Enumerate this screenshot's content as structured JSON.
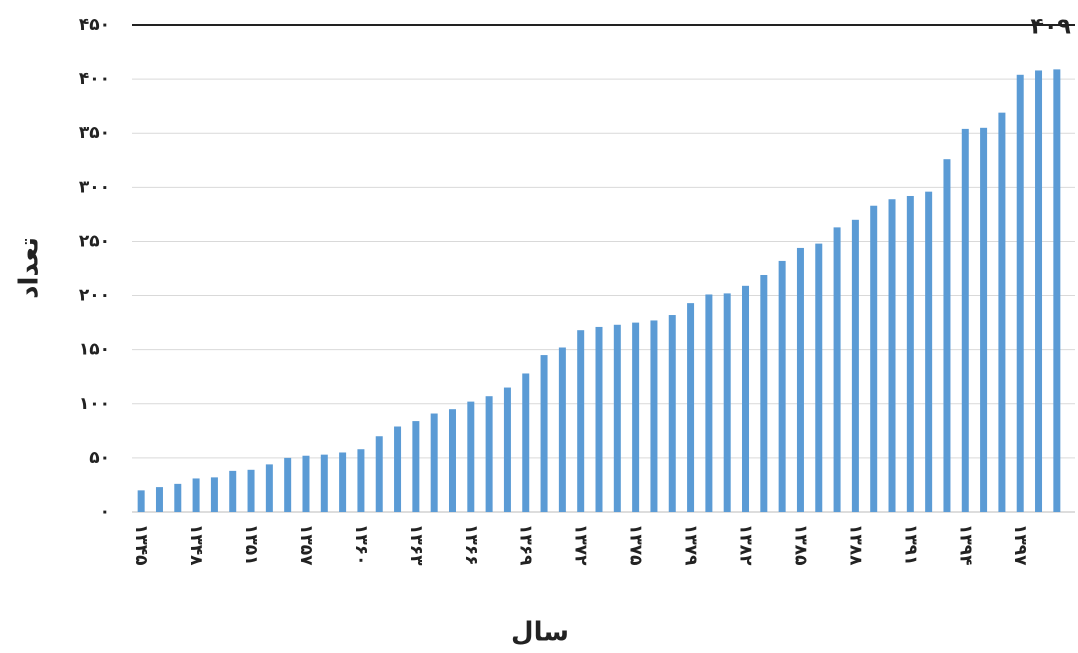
{
  "chart_data": {
    "type": "bar",
    "x_label": "سال",
    "y_label": "تعداد",
    "categories": [
      "۱۳۴۵",
      null,
      null,
      "۱۳۴۸",
      null,
      null,
      "۱۳۵۱",
      null,
      null,
      "۱۳۵۷",
      null,
      null,
      "۱۳۶۰",
      null,
      null,
      "۱۳۶۳",
      null,
      null,
      "۱۳۶۶",
      null,
      null,
      "۱۳۶۹",
      null,
      null,
      "۱۳۷۲",
      null,
      null,
      "۱۳۷۵",
      null,
      null,
      "۱۳۷۹",
      null,
      null,
      "۱۳۸۲",
      null,
      null,
      "۱۳۸۵",
      null,
      null,
      "۱۳۸۸",
      null,
      null,
      "۱۳۹۱",
      null,
      null,
      "۱۳۹۴",
      null,
      null,
      "۱۳۹۷",
      null,
      null
    ],
    "values": [
      20,
      23,
      26,
      31,
      32,
      38,
      39,
      44,
      50,
      52,
      53,
      55,
      58,
      70,
      79,
      84,
      91,
      95,
      102,
      107,
      115,
      128,
      145,
      152,
      168,
      171,
      173,
      175,
      177,
      182,
      193,
      201,
      202,
      209,
      219,
      232,
      244,
      248,
      263,
      270,
      283,
      289,
      292,
      296,
      326,
      354,
      355,
      369,
      404,
      408,
      409
    ],
    "value_labels": [
      null,
      null,
      null,
      null,
      null,
      null,
      null,
      null,
      null,
      null,
      null,
      null,
      null,
      null,
      null,
      null,
      null,
      null,
      null,
      null,
      null,
      null,
      null,
      null,
      null,
      null,
      null,
      null,
      null,
      null,
      null,
      null,
      null,
      null,
      null,
      null,
      null,
      null,
      null,
      null,
      null,
      null,
      null,
      null,
      null,
      null,
      null,
      null,
      null,
      null,
      "۴۰۹"
    ],
    "color": "#5b9bd5",
    "ylim": [
      0,
      450
    ],
    "yticks": [
      {
        "value": 0,
        "label": "۰"
      },
      {
        "value": 50,
        "label": "۵۰"
      },
      {
        "value": 100,
        "label": "۱۰۰"
      },
      {
        "value": 150,
        "label": "۱۵۰"
      },
      {
        "value": 200,
        "label": "۲۰۰"
      },
      {
        "value": 250,
        "label": "۲۵۰"
      },
      {
        "value": 300,
        "label": "۳۰۰"
      },
      {
        "value": 350,
        "label": "۳۵۰"
      },
      {
        "value": 400,
        "label": "۴۰۰"
      },
      {
        "value": 450,
        "label": "۴۵۰"
      }
    ],
    "grid": true
  }
}
